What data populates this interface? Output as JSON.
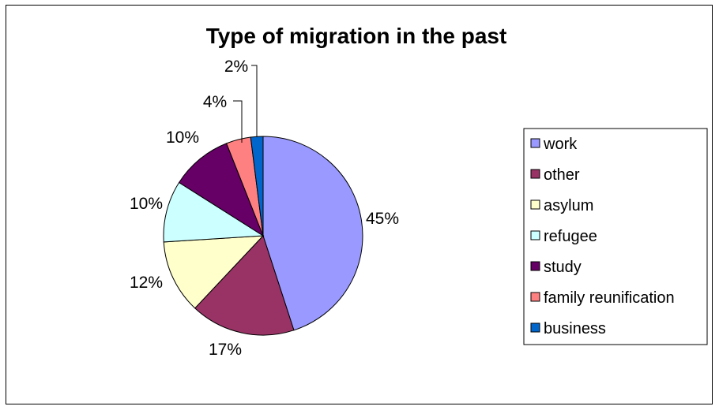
{
  "chart_data": {
    "type": "pie",
    "title": "Type of migration in the past",
    "categories": [
      "work",
      "other",
      "asylum",
      "refugee",
      "study",
      "family reunification",
      "business"
    ],
    "values": [
      45,
      17,
      12,
      10,
      10,
      4,
      2
    ],
    "labels": [
      "45%",
      "17%",
      "12%",
      "10%",
      "10%",
      "4%",
      "2%"
    ],
    "colors": [
      "#9999ff",
      "#993366",
      "#ffffcc",
      "#ccffff",
      "#660066",
      "#ff8080",
      "#0066cc"
    ],
    "legend_position": "right",
    "start": "top",
    "direction": "clockwise"
  }
}
